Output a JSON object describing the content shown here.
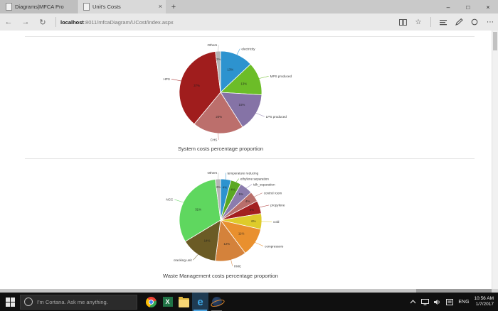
{
  "browser": {
    "tabs": [
      {
        "title": "Diagrams|MFCA Pro"
      },
      {
        "title": "Unit's Costs"
      }
    ],
    "tab_close": "×",
    "new_tab": "+",
    "window": {
      "minimize": "–",
      "maximize": "□",
      "close": "×"
    },
    "toolbar": {
      "back": "←",
      "forward": "→",
      "refresh": "↻",
      "star": "☆",
      "more": "⋯"
    },
    "url": {
      "host": "localhost",
      "path": ":8011/mfcaDiagram/UCost/index.aspx"
    }
  },
  "chart_data": [
    {
      "type": "pie",
      "title": "System costs percentage proportion",
      "legend_position": "outside-labels",
      "slices": [
        {
          "label": "electricity",
          "value": 13,
          "pct": "13%",
          "color": "#2d93cf"
        },
        {
          "label": "MPS produced",
          "value": 13,
          "pct": "13%",
          "color": "#6cbd28"
        },
        {
          "label": "LPS produced",
          "value": 15,
          "pct": "15%",
          "color": "#8573a6"
        },
        {
          "label": "CHS",
          "value": 20,
          "pct": "20%",
          "color": "#bc6f6c"
        },
        {
          "label": "HPS",
          "value": 37,
          "pct": "37%",
          "color": "#a01d1d"
        },
        {
          "label": "Others",
          "value": 2,
          "pct": "2%",
          "color": "#b5b5b5"
        }
      ]
    },
    {
      "type": "pie",
      "title": "Waste Management costs percentage proportion",
      "legend_position": "outside-labels",
      "slices": [
        {
          "label": "temperature reducing",
          "value": 4,
          "pct": "4%",
          "color": "#2d93cf"
        },
        {
          "label": "ethylene separation",
          "value": 4,
          "pct": "4%",
          "color": "#5aa822"
        },
        {
          "label": "tdh_separation",
          "value": 5,
          "pct": "5%",
          "color": "#8b7cad"
        },
        {
          "label": "control room",
          "value": 4,
          "pct": "4%",
          "color": "#b96e6a"
        },
        {
          "label": "propylene",
          "value": 5,
          "pct": "5%",
          "color": "#a32020"
        },
        {
          "label": "cold",
          "value": 6,
          "pct": "6%",
          "color": "#decb2b"
        },
        {
          "label": "compressors",
          "value": 11,
          "pct": "11%",
          "color": "#e9902e"
        },
        {
          "label": "HMC",
          "value": 12,
          "pct": "12%",
          "color": "#d4823b"
        },
        {
          "label": "cracking unit",
          "value": 14,
          "pct": "14%",
          "color": "#6b5b25"
        },
        {
          "label": "NCC",
          "value": 31,
          "pct": "31%",
          "color": "#5fd75f"
        },
        {
          "label": "Others",
          "value": 2,
          "pct": "2%",
          "color": "#b5b5b5"
        }
      ]
    }
  ],
  "taskbar": {
    "cortana_placeholder": "I'm Cortana. Ask me anything.",
    "tray": {
      "lang": "ENG",
      "time": "10:56 AM",
      "date": "1/7/2017"
    }
  }
}
